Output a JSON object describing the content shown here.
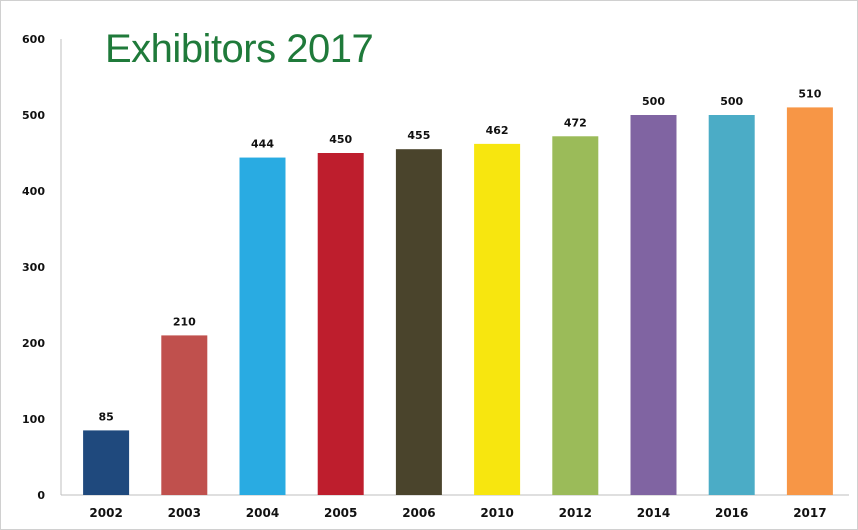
{
  "chart_data": {
    "type": "bar",
    "title": "Exhibitors 2017",
    "xlabel": "",
    "ylabel": "",
    "categories": [
      "2002",
      "2003",
      "2004",
      "2005",
      "2006",
      "2010",
      "2012",
      "2014",
      "2016",
      "2017"
    ],
    "values": [
      85,
      210,
      444,
      450,
      455,
      462,
      472,
      500,
      500,
      510
    ],
    "colors": [
      "#1f497d",
      "#c0504d",
      "#29abe2",
      "#be1e2d",
      "#4a442c",
      "#f7e60f",
      "#9bbb59",
      "#8064a2",
      "#4bacc6",
      "#f79646"
    ],
    "ylim": [
      0,
      600
    ],
    "yticks": [
      0,
      100,
      200,
      300,
      400,
      500,
      600
    ],
    "grid": false,
    "legend": "none",
    "data_labels": true
  }
}
